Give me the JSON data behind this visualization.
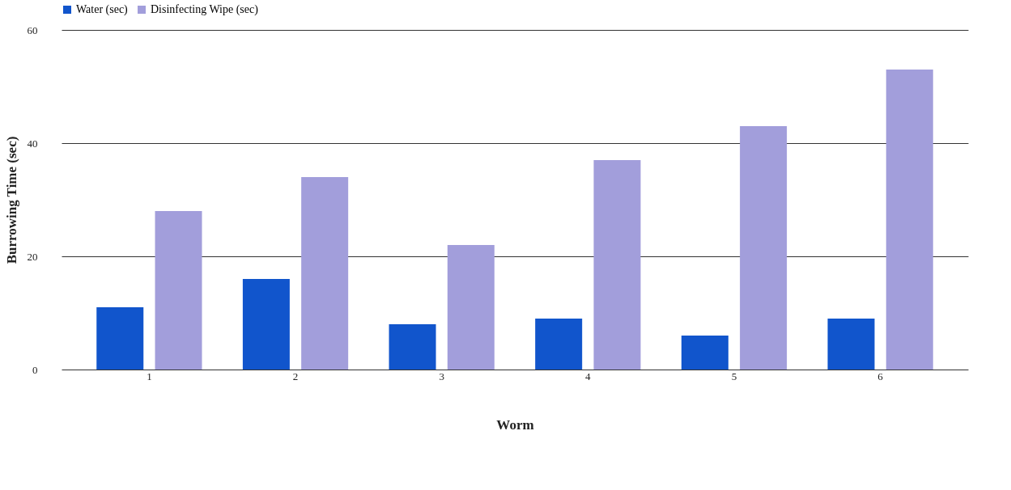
{
  "chart_data": {
    "type": "bar",
    "xlabel": "Worm",
    "ylabel": "Burrowing Time (sec)",
    "categories": [
      "1",
      "2",
      "3",
      "4",
      "5",
      "6"
    ],
    "series": [
      {
        "name": "Water (sec)",
        "color": "#1155cc",
        "values": [
          11,
          16,
          8,
          9,
          6,
          9
        ]
      },
      {
        "name": "Disinfecting Wipe (sec)",
        "color": "#a29edb",
        "values": [
          28,
          34,
          22,
          37,
          43,
          53
        ]
      }
    ],
    "ylim": [
      0,
      60
    ],
    "yticks": [
      0,
      20,
      40,
      60
    ],
    "grid": "y",
    "legend": "top"
  }
}
